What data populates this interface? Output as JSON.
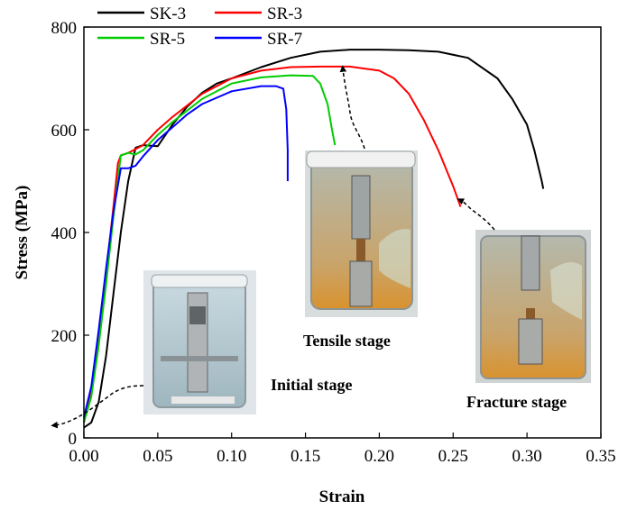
{
  "chart_data": {
    "type": "line",
    "title": "",
    "xlabel": "Strain",
    "ylabel": "Stress (MPa)",
    "xlim": [
      0.0,
      0.35
    ],
    "ylim": [
      0,
      800
    ],
    "xticks": [
      0.0,
      0.05,
      0.1,
      0.15,
      0.2,
      0.25,
      0.3,
      0.35
    ],
    "xtick_labels": [
      "0.00",
      "0.05",
      "0.10",
      "0.15",
      "0.20",
      "0.25",
      "0.30",
      "0.35"
    ],
    "yticks": [
      0,
      200,
      400,
      600,
      800
    ],
    "ytick_labels": [
      "0",
      "200",
      "400",
      "600",
      "800"
    ],
    "grid": false,
    "legend_position": "top-left",
    "series": [
      {
        "name": "SK-3",
        "color": "#000000",
        "x": [
          0.0,
          0.005,
          0.01,
          0.015,
          0.02,
          0.025,
          0.03,
          0.035,
          0.04,
          0.05,
          0.06,
          0.07,
          0.08,
          0.09,
          0.1,
          0.12,
          0.14,
          0.16,
          0.18,
          0.2,
          0.22,
          0.24,
          0.26,
          0.28,
          0.29,
          0.3,
          0.305,
          0.31,
          0.311
        ],
        "y": [
          20,
          30,
          70,
          160,
          280,
          400,
          500,
          565,
          570,
          568,
          610,
          645,
          672,
          690,
          700,
          722,
          740,
          752,
          756,
          756,
          755,
          752,
          740,
          700,
          660,
          610,
          560,
          500,
          485
        ]
      },
      {
        "name": "SR-3",
        "color": "#ff0000",
        "x": [
          0.0,
          0.005,
          0.01,
          0.015,
          0.02,
          0.023,
          0.025,
          0.03,
          0.04,
          0.05,
          0.06,
          0.08,
          0.1,
          0.12,
          0.14,
          0.16,
          0.18,
          0.2,
          0.21,
          0.22,
          0.23,
          0.24,
          0.25,
          0.255
        ],
        "y": [
          30,
          90,
          200,
          320,
          450,
          535,
          550,
          555,
          570,
          600,
          625,
          670,
          700,
          715,
          722,
          723,
          723,
          715,
          700,
          670,
          620,
          560,
          490,
          450
        ]
      },
      {
        "name": "SR-5",
        "color": "#00cc00",
        "x": [
          0.0,
          0.005,
          0.01,
          0.015,
          0.02,
          0.025,
          0.03,
          0.035,
          0.04,
          0.05,
          0.06,
          0.08,
          0.1,
          0.12,
          0.14,
          0.155,
          0.16,
          0.165,
          0.168,
          0.17
        ],
        "y": [
          30,
          80,
          180,
          300,
          430,
          550,
          555,
          552,
          560,
          590,
          615,
          660,
          690,
          702,
          706,
          705,
          690,
          650,
          600,
          570
        ]
      },
      {
        "name": "SR-7",
        "color": "#0000ff",
        "x": [
          0.0,
          0.005,
          0.01,
          0.015,
          0.02,
          0.025,
          0.03,
          0.035,
          0.04,
          0.05,
          0.06,
          0.07,
          0.08,
          0.1,
          0.12,
          0.13,
          0.135,
          0.137,
          0.138,
          0.138
        ],
        "y": [
          40,
          100,
          210,
          330,
          440,
          525,
          525,
          530,
          548,
          580,
          605,
          630,
          650,
          675,
          685,
          685,
          680,
          640,
          560,
          500
        ]
      }
    ],
    "annotations": [
      {
        "text": "Initial stage",
        "x": 0.0,
        "y": 20
      },
      {
        "text": "Tensile stage",
        "x": 0.175,
        "y": 723
      },
      {
        "text": "Fracture stage",
        "x": 0.257,
        "y": 470
      }
    ]
  }
}
